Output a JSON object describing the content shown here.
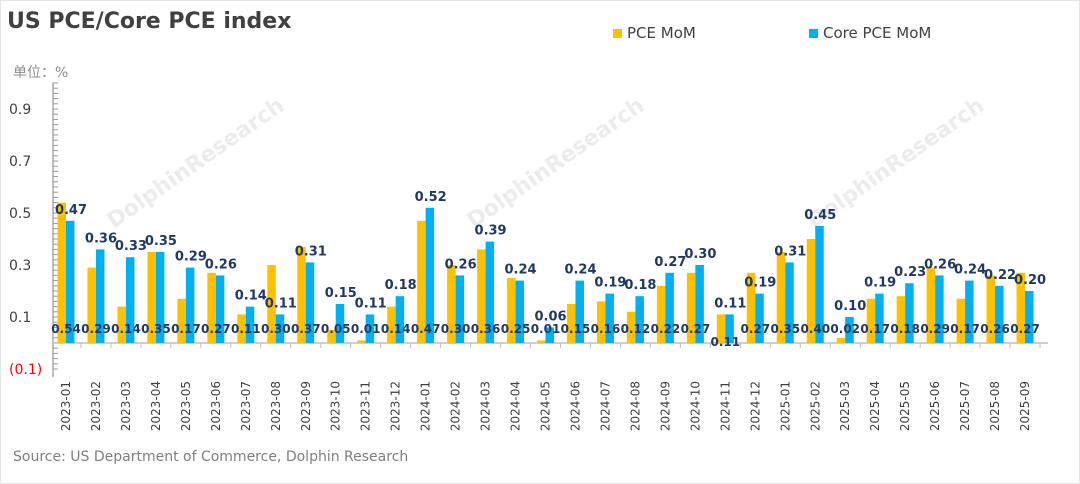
{
  "title": "US PCE/Core PCE index",
  "unit": "单位：%",
  "source": "Source: US Department of Commerce, Dolphin Research",
  "watermark": "DolphinResearch",
  "colors": {
    "pce": "#FFC000",
    "core": "#00B0F0",
    "label": "#1F3864",
    "negative": "#FF0000"
  },
  "chart_data": {
    "type": "bar",
    "title": "US PCE/Core PCE index",
    "ylabel": "单位：%",
    "ylim": [
      -0.1,
      1.0
    ],
    "yticks": [
      {
        "v": 0.9,
        "t": "0.9"
      },
      {
        "v": 0.7,
        "t": "0.7"
      },
      {
        "v": 0.5,
        "t": "0.5"
      },
      {
        "v": 0.3,
        "t": "0.3"
      },
      {
        "v": 0.1,
        "t": "0.1"
      },
      {
        "v": -0.1,
        "t": "(0.1)"
      }
    ],
    "legend_position": "top-right",
    "categories": [
      "2023-01",
      "2023-02",
      "2023-03",
      "2023-04",
      "2023-05",
      "2023-06",
      "2023-07",
      "2023-08",
      "2023-09",
      "2023-10",
      "2023-11",
      "2023-12",
      "2024-01",
      "2024-02",
      "2024-03",
      "2024-04",
      "2024-05",
      "2024-06",
      "2024-07",
      "2024-08",
      "2024-09",
      "2024-10",
      "2024-11",
      "2024-12",
      "2025-01",
      "2025-02",
      "2025-03",
      "2025-04",
      "2025-05",
      "2025-06",
      "2025-07",
      "2025-08",
      "2025-09"
    ],
    "series": [
      {
        "name": "PCE MoM",
        "values": [
          0.54,
          0.29,
          0.14,
          0.35,
          0.17,
          0.27,
          0.11,
          0.3,
          0.37,
          0.05,
          0.01,
          0.14,
          0.47,
          0.3,
          0.36,
          0.25,
          0.01,
          0.15,
          0.16,
          0.12,
          0.22,
          0.27,
          0.11,
          0.27,
          0.35,
          0.4,
          0.02,
          0.17,
          0.18,
          0.29,
          0.17,
          0.26,
          0.27
        ]
      },
      {
        "name": "Core PCE MoM",
        "values": [
          0.47,
          0.36,
          0.33,
          0.35,
          0.29,
          0.26,
          0.14,
          0.11,
          0.31,
          0.15,
          0.11,
          0.18,
          0.52,
          0.26,
          0.39,
          0.24,
          0.06,
          0.24,
          0.19,
          0.18,
          0.27,
          0.3,
          0.11,
          0.19,
          0.31,
          0.45,
          0.1,
          0.19,
          0.23,
          0.26,
          0.24,
          0.22,
          0.2
        ]
      }
    ]
  }
}
